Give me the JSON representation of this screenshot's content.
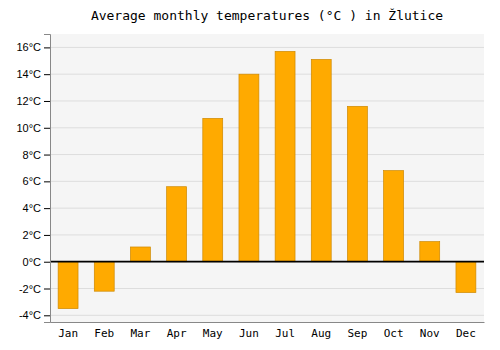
{
  "chart_data": {
    "type": "bar",
    "title": "Average monthly temperatures (°C ) in Žlutice",
    "categories": [
      "Jan",
      "Feb",
      "Mar",
      "Apr",
      "May",
      "Jun",
      "Jul",
      "Aug",
      "Sep",
      "Oct",
      "Nov",
      "Dec"
    ],
    "values": [
      -3.5,
      -2.2,
      1.1,
      5.6,
      10.7,
      14.0,
      15.7,
      15.1,
      11.6,
      6.8,
      1.5,
      -2.3
    ],
    "color": "#FFAA00",
    "ylim": [
      -4.5,
      17
    ],
    "yticks": [
      {
        "value": -4,
        "label": "-4°C"
      },
      {
        "value": -2,
        "label": "-2°C"
      },
      {
        "value": 0,
        "label": "0°C"
      },
      {
        "value": 2,
        "label": "2°C"
      },
      {
        "value": 4,
        "label": "4°C"
      },
      {
        "value": 6,
        "label": "6°C"
      },
      {
        "value": 8,
        "label": "8°C"
      },
      {
        "value": 10,
        "label": "10°C"
      },
      {
        "value": 12,
        "label": "12°C"
      },
      {
        "value": 14,
        "label": "14°C"
      },
      {
        "value": 16,
        "label": "16°C"
      }
    ],
    "grid": true
  }
}
